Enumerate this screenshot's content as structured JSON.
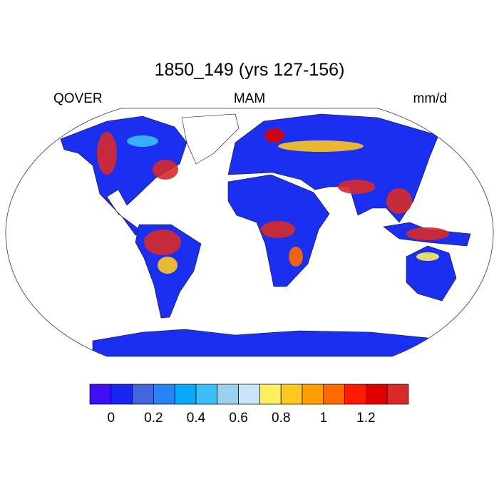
{
  "title": "1850_149 (yrs 127-156)",
  "left_string": "QOVER",
  "center_string": "MAM",
  "right_string": "mm/d",
  "map": {
    "projection": "Robinson",
    "land_fill": "#1a2ff0",
    "ice_fill": "#ffffff",
    "ocean_fill": "#ffffff"
  },
  "colorbar": {
    "colors": [
      "#3f10f5",
      "#1726f0",
      "#4466dd",
      "#2884f5",
      "#0aa8fa",
      "#3ac0f8",
      "#98d0ee",
      "#c8e6f8",
      "#ffee60",
      "#ffc820",
      "#ff9e00",
      "#ff6a00",
      "#ff1a00",
      "#e00000",
      "#d82a2a"
    ],
    "boundaries": [
      0,
      0.1,
      0.2,
      0.3,
      0.4,
      0.5,
      0.6,
      0.7,
      0.8,
      0.9,
      1,
      1.1,
      1.2,
      1.3
    ],
    "labels": [
      "0",
      "0.2",
      "0.4",
      "0.6",
      "0.8",
      "1",
      "1.2"
    ]
  }
}
